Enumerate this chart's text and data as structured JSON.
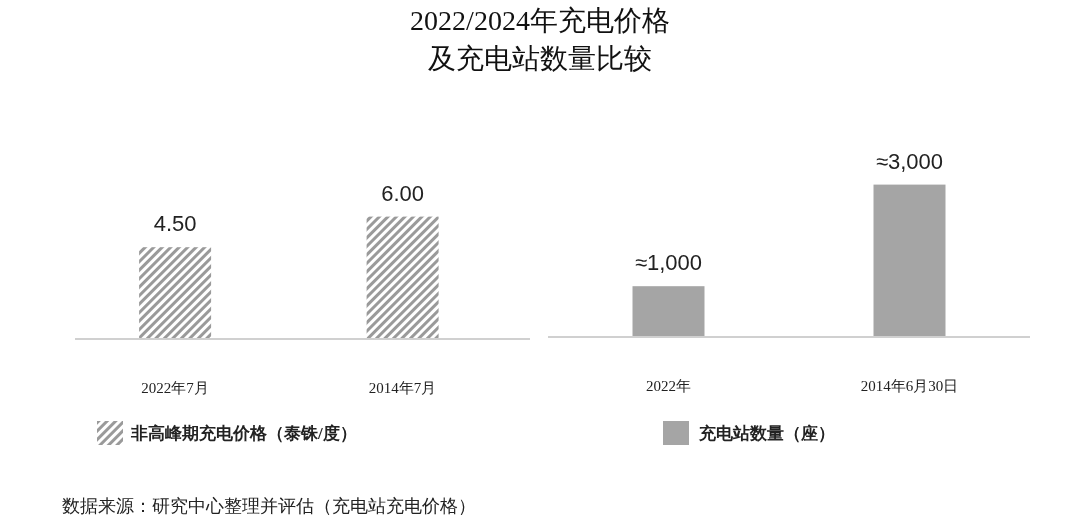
{
  "chart_data": [
    {
      "type": "bar",
      "title": "2022/2024年充电价格及充电站数量比较",
      "categories": [
        "2022年7月",
        "2014年7月"
      ],
      "series": [
        {
          "name": "非高峰期充电价格（泰铢/度）",
          "color": "#9a9a9a",
          "values": [
            4.5,
            6.0
          ],
          "value_labels": [
            "4.50",
            "6.00"
          ]
        }
      ],
      "legend": "bottom"
    },
    {
      "type": "bar",
      "categories": [
        "2022年",
        "2014年6月30日"
      ],
      "series": [
        {
          "name": "充电站数量（座）",
          "color": "#a5a5a5",
          "values": [
            1000,
            3000
          ],
          "value_labels": [
            "≈1,000",
            "≈3,000"
          ]
        }
      ],
      "legend": "bottom",
      "annotations": [
        "数据来源：研究中心整理并评估（充电站充电价格）"
      ]
    }
  ]
}
